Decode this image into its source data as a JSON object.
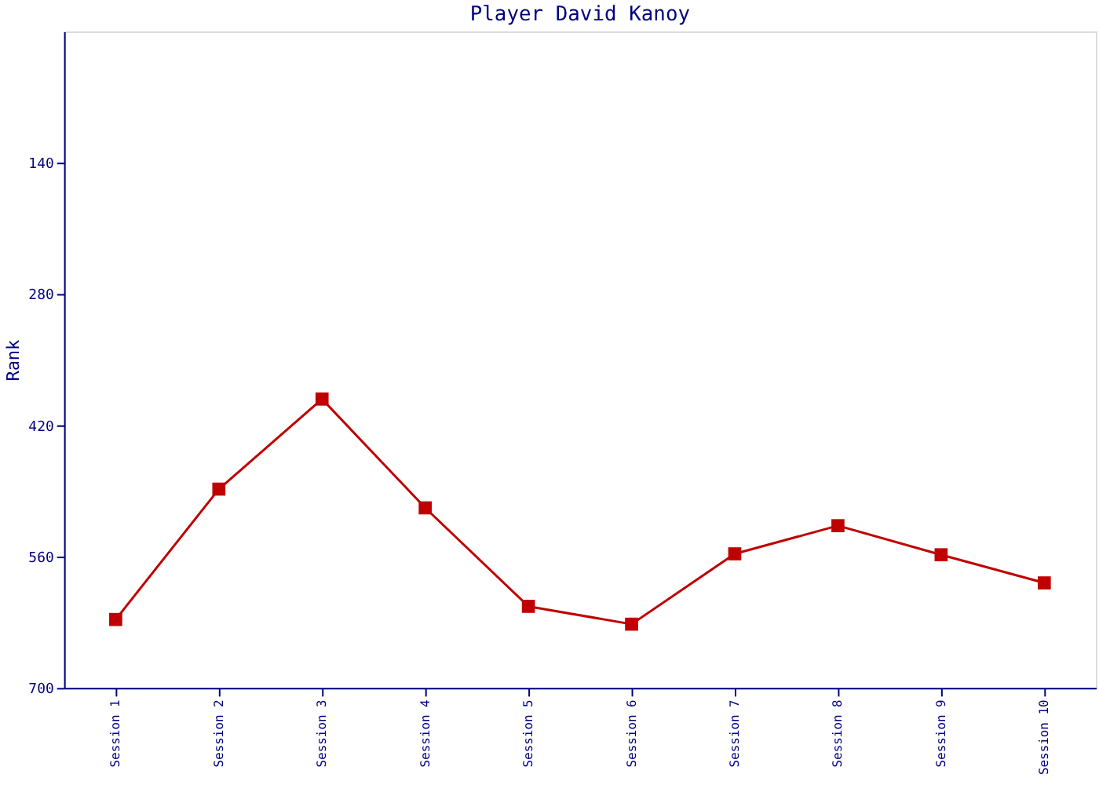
{
  "chart_data": {
    "type": "line",
    "title": "Player David Kanoy",
    "ylabel": "Rank",
    "categories": [
      "Session 1",
      "Session 2",
      "Session 3",
      "Session 4",
      "Session 5",
      "Session 6",
      "Session 7",
      "Session 8",
      "Session 9",
      "Session 10"
    ],
    "series": [
      {
        "color": "#c00000",
        "values": [
          627,
          488,
          392,
          508,
          613,
          632,
          557,
          527,
          558,
          588
        ]
      }
    ],
    "ylim": [
      700,
      0
    ],
    "yticks": [
      140,
      280,
      420,
      560,
      700
    ],
    "grid": false,
    "legend": false,
    "marker": "square",
    "line_style": "solid"
  }
}
